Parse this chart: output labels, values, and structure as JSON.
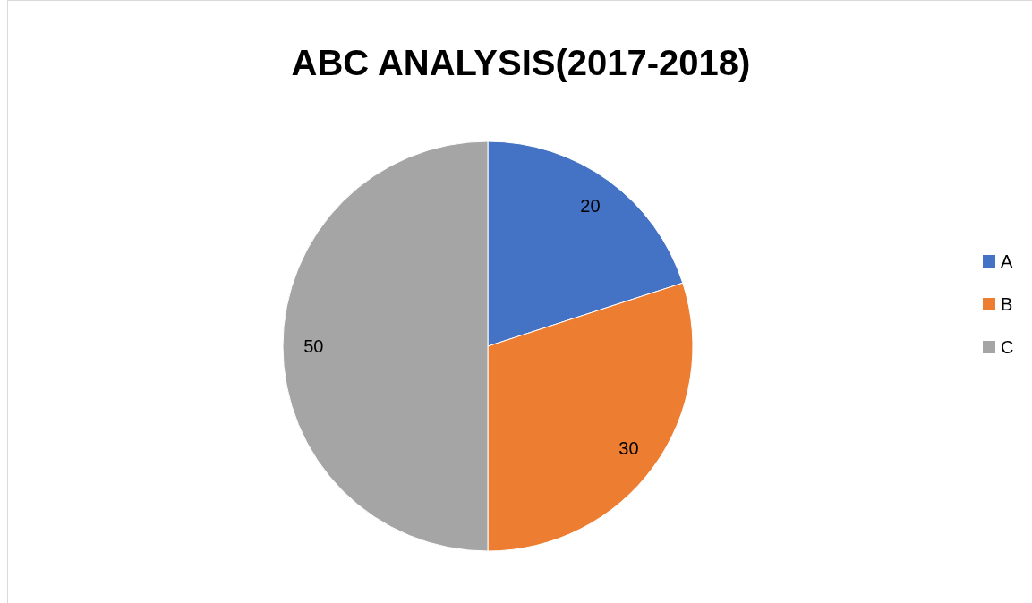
{
  "chart_data": {
    "type": "pie",
    "title": "ABC ANALYSIS(2017-2018)",
    "categories": [
      "A",
      "B",
      "C"
    ],
    "values": [
      20,
      30,
      50
    ],
    "colors": [
      "#4472c4",
      "#ed7d31",
      "#a5a5a5"
    ],
    "data_labels": true,
    "legend": "right"
  }
}
